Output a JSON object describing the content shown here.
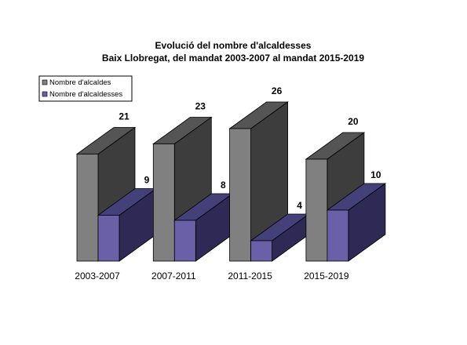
{
  "chart_data": {
    "type": "bar",
    "title": "Evolució del nombre d'alcaldesses",
    "subtitle": "Baix Llobregat, del mandat 2003-2007 al mandat 2015-2019",
    "categories": [
      "2003-2007",
      "2007-2011",
      "2011-2015",
      "2015-2019"
    ],
    "series": [
      {
        "name": "Nombre d'alcaldes",
        "values": [
          21,
          23,
          26,
          20
        ]
      },
      {
        "name": "Nombre d'alcaldesses",
        "values": [
          9,
          8,
          4,
          10
        ]
      }
    ],
    "xlabel": "",
    "ylabel": "",
    "ylim": [
      0,
      26
    ],
    "grid": false,
    "legend_position": "top-left",
    "three_d": true
  },
  "colors": {
    "alcaldes_front": "#808080",
    "alcaldes_side": "#3d3d3d",
    "alcaldes_top": "#555555",
    "alcaldesses_front": "#6a60a8",
    "alcaldesses_side": "#2f2a55",
    "alcaldesses_top": "#44407a",
    "outline": "#000000"
  }
}
